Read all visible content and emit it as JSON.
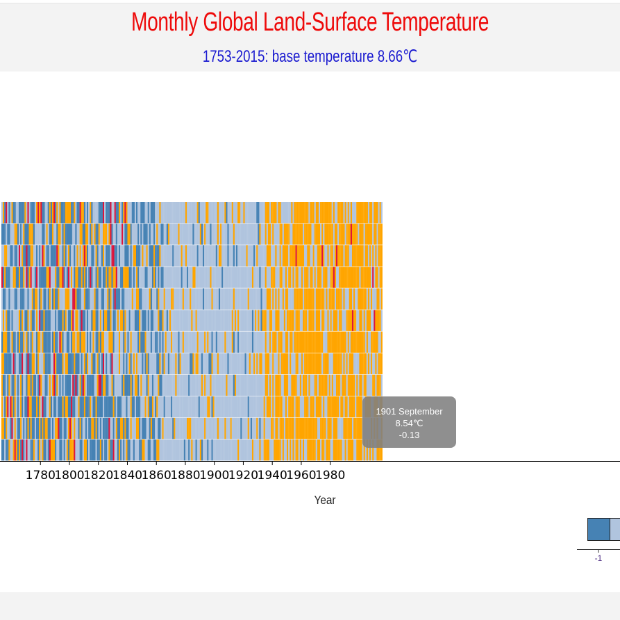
{
  "header": {
    "title": "Monthly Global Land-Surface Temperature",
    "subtitle": "1753-2015: base temperature 8.66℃"
  },
  "chart_data": {
    "type": "heatmap",
    "base_temperature": 8.66,
    "x_label": "Year",
    "x_ticks": [
      "1780",
      "1800",
      "1820",
      "1840",
      "1860",
      "1880",
      "1900",
      "1920",
      "1940",
      "1960",
      "1980"
    ],
    "rows": 12,
    "legend_tick_label": "-1",
    "colors": {
      "cold": "#4682b4",
      "cool": "#b0c4de",
      "warm": "#ffa500",
      "hot": "#dc143c"
    },
    "tooltip": {
      "line1": "1901 September",
      "line2": "8.54℃",
      "line3": "-0.13"
    }
  }
}
